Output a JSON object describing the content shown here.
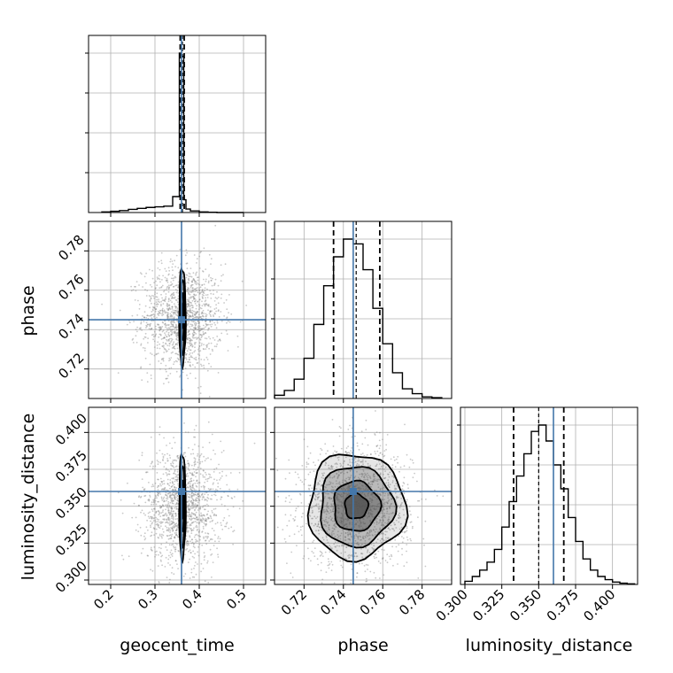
{
  "chart_data": {
    "type": "corner",
    "parameters": [
      "geocent_time",
      "phase",
      "luminosity_distance"
    ],
    "axis_labels": {
      "geocent_time": "geocent_time",
      "phase": "phase",
      "luminosity_distance": "luminosity_distance"
    },
    "ranges": {
      "geocent_time": [
        0.15,
        0.55
      ],
      "phase": [
        0.705,
        0.795
      ],
      "luminosity_distance": [
        0.297,
        0.417
      ]
    },
    "ticks": {
      "geocent_time": [
        {
          "value": 0.2,
          "label": "0.2"
        },
        {
          "value": 0.3,
          "label": "0.3"
        },
        {
          "value": 0.4,
          "label": "0.4"
        },
        {
          "value": 0.5,
          "label": "0.5"
        }
      ],
      "phase": [
        {
          "value": 0.72,
          "label": "0.72"
        },
        {
          "value": 0.74,
          "label": "0.74"
        },
        {
          "value": 0.76,
          "label": "0.76"
        },
        {
          "value": 0.78,
          "label": "0.78"
        }
      ],
      "luminosity_distance": [
        {
          "value": 0.3,
          "label": "0.300"
        },
        {
          "value": 0.325,
          "label": "0.325"
        },
        {
          "value": 0.35,
          "label": "0.350"
        },
        {
          "value": 0.375,
          "label": "0.375"
        },
        {
          "value": 0.4,
          "label": "0.400"
        }
      ]
    },
    "truths": {
      "geocent_time": 0.36,
      "phase": 0.745,
      "luminosity_distance": 0.36
    },
    "quantiles": {
      "geocent_time": [
        0.357,
        0.362,
        0.366
      ],
      "phase": [
        0.735,
        0.7465,
        0.7585
      ],
      "luminosity_distance": [
        0.333,
        0.35,
        0.367
      ]
    },
    "histograms": {
      "geocent_time": {
        "edges": [
          0.18,
          0.2,
          0.22,
          0.24,
          0.26,
          0.28,
          0.3,
          0.32,
          0.34,
          0.355,
          0.36,
          0.365,
          0.37,
          0.38,
          0.4,
          0.42,
          0.44,
          0.46,
          0.48,
          0.5
        ],
        "counts": [
          0.004,
          0.008,
          0.012,
          0.02,
          0.026,
          0.032,
          0.036,
          0.04,
          0.1,
          1.0,
          0.98,
          0.08,
          0.022,
          0.01,
          0.004,
          0.002,
          0.0,
          0.0,
          0.0
        ]
      },
      "phase": {
        "edges": [
          0.705,
          0.71,
          0.715,
          0.72,
          0.725,
          0.73,
          0.735,
          0.74,
          0.745,
          0.75,
          0.755,
          0.76,
          0.765,
          0.77,
          0.775,
          0.78,
          0.785,
          0.79
        ],
        "counts": [
          0.02,
          0.05,
          0.12,
          0.25,
          0.46,
          0.7,
          0.88,
          0.99,
          0.96,
          0.8,
          0.56,
          0.34,
          0.16,
          0.06,
          0.03,
          0.01,
          0.005
        ]
      },
      "luminosity_distance": {
        "edges": [
          0.3,
          0.305,
          0.31,
          0.315,
          0.32,
          0.325,
          0.33,
          0.335,
          0.34,
          0.345,
          0.35,
          0.355,
          0.36,
          0.365,
          0.37,
          0.375,
          0.38,
          0.385,
          0.39,
          0.395,
          0.4,
          0.405,
          0.41,
          0.415
        ],
        "counts": [
          0.02,
          0.05,
          0.09,
          0.14,
          0.22,
          0.36,
          0.52,
          0.68,
          0.82,
          0.96,
          1.0,
          0.9,
          0.75,
          0.6,
          0.42,
          0.27,
          0.16,
          0.09,
          0.05,
          0.03,
          0.015,
          0.008,
          0.004
        ]
      }
    },
    "contour_levels": 4,
    "colors": {
      "truth": "#4477aa",
      "contour": "#000000",
      "fill": "#555555",
      "scatter": "#888888",
      "grid": "#b0b0b0"
    },
    "grid": true
  }
}
